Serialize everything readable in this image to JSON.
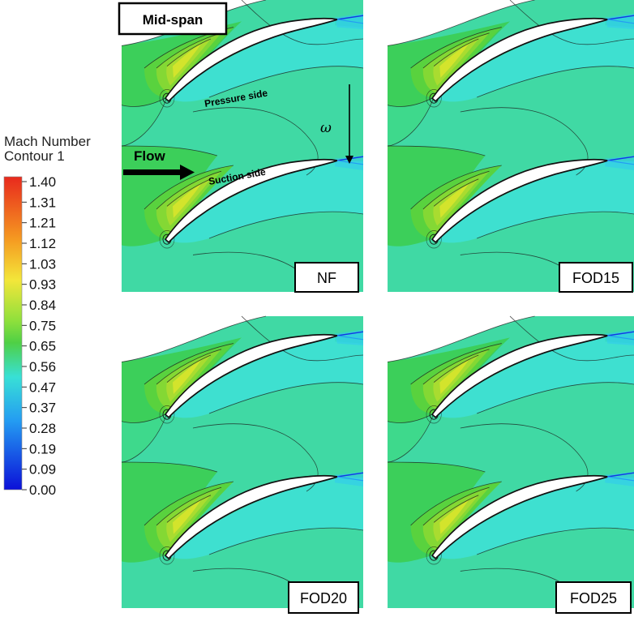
{
  "header": {
    "label": "Mid-span"
  },
  "legend": {
    "title_line1": "Mach Number",
    "title_line2": "Contour 1",
    "ticks": [
      "1.40",
      "1.31",
      "1.21",
      "1.12",
      "1.03",
      "0.93",
      "0.84",
      "0.75",
      "0.65",
      "0.56",
      "0.47",
      "0.37",
      "0.28",
      "0.19",
      "0.09",
      "0.00"
    ],
    "colors": [
      "#e8291d",
      "#ef4a1c",
      "#f26f1f",
      "#f59a21",
      "#f7c42a",
      "#f3e63a",
      "#c8ea3c",
      "#8fe03c",
      "#4fd045",
      "#45d6a0",
      "#38e0d6",
      "#2fc8ee",
      "#249cf2",
      "#1a6cf2",
      "#1238e6",
      "#0b10d8"
    ]
  },
  "annotations": {
    "pressure_side": "Pressure side",
    "suction_side": "Suction side",
    "flow": "Flow",
    "omega": "ω"
  },
  "panels": [
    {
      "label": "NF"
    },
    {
      "label": "FOD15"
    },
    {
      "label": "FOD20"
    },
    {
      "label": "FOD25"
    }
  ],
  "field_colors": {
    "background": "#3ed98c",
    "upper_band": "#46dba6",
    "freestream": "#40d9a4",
    "wake": "#35dcc6",
    "suction_zone": "#3ee0d0",
    "inlet_lobe": "#3ccf5a",
    "lobe2": "#59d23e",
    "lobe3": "#84d834",
    "lobe4": "#a9dc30",
    "lobe5": "#d3e42c"
  }
}
